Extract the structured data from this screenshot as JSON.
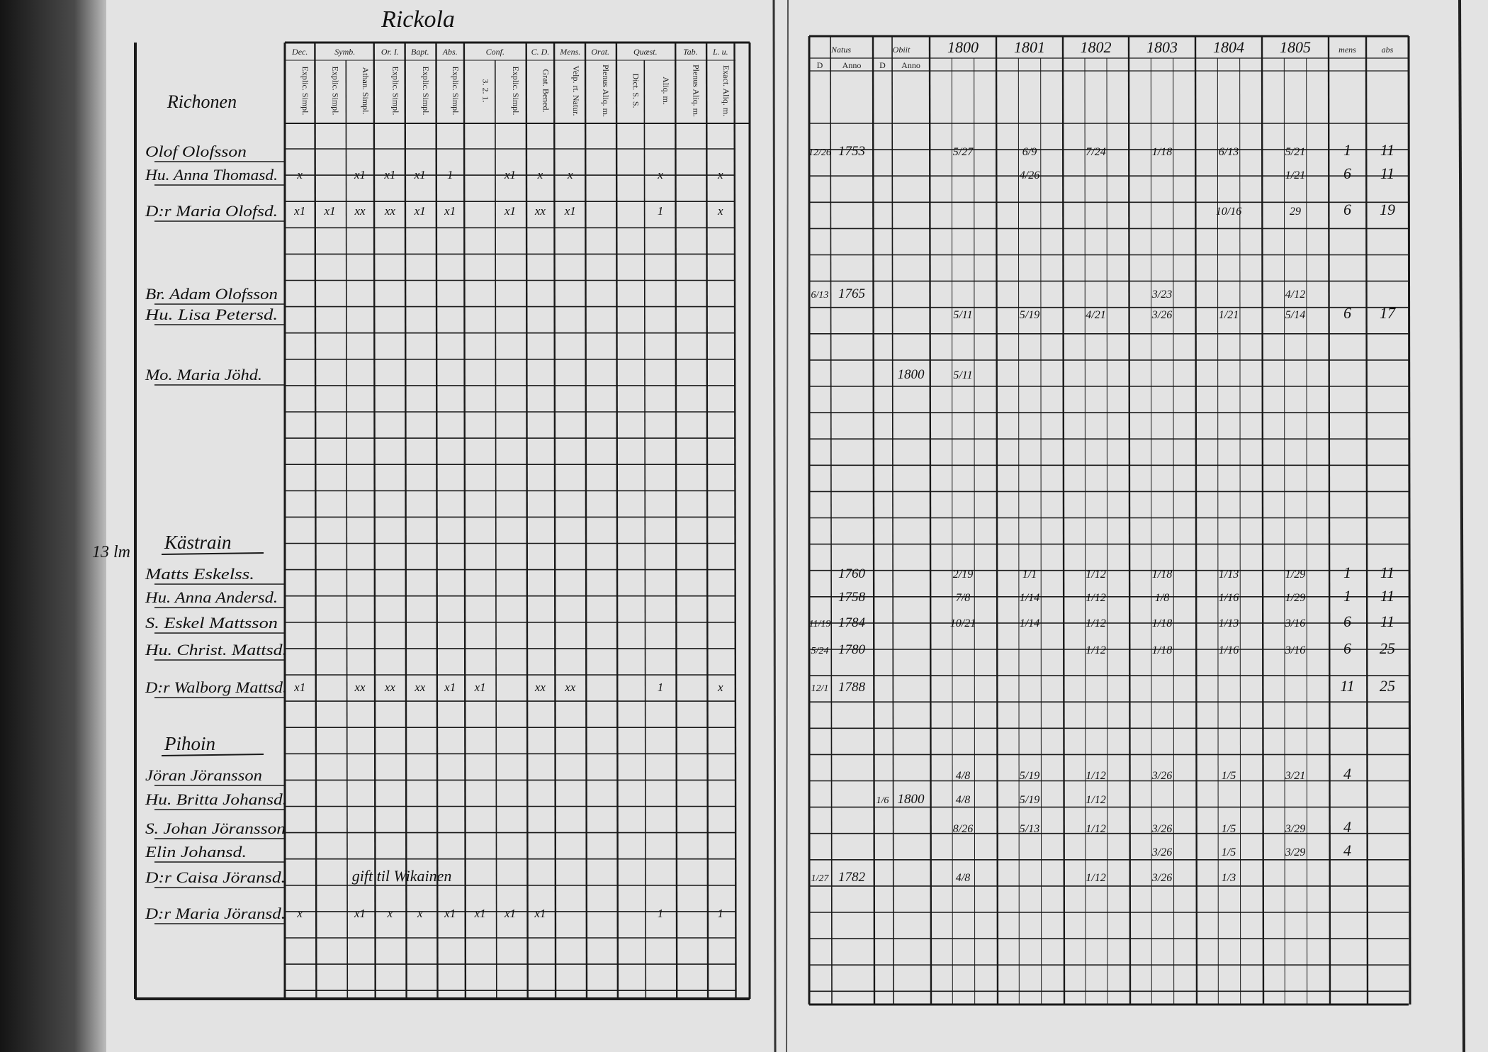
{
  "left_page": {
    "title": "Rickola",
    "name_header": "Richonen",
    "column_groups": [
      "Dec.",
      "Symb.",
      "Or. I.",
      "Bapt.",
      "Abs.",
      "Conf.",
      "C. D.",
      "Mens.",
      "Orat.",
      "Quæst.",
      "Tab.",
      "L. u."
    ],
    "column_subheaders": [
      "Explic. Simpl.",
      "Explic. Simpl.",
      "Athan. Simpl.",
      "Explic. Simpl.",
      "Explic. Simpl.",
      "Explic. Simpl.",
      "3. 2. 1.",
      "Explic. Simpl.",
      "Grat. Bened.",
      "Velp. rt. Natur.",
      "Plenus Aliq. m.",
      "Dict. S. S.",
      "Aliq. m.",
      "Plenus Aliq. m.",
      "Exact. Aliq. m."
    ],
    "sections": [
      {
        "label": "Kästrain",
        "margin": "13 lm"
      },
      {
        "label": "Pihoin"
      }
    ],
    "persons": [
      {
        "name": "Olof Olofsson"
      },
      {
        "name": "Hu. Anna Thomasd.",
        "marks": [
          "x",
          null,
          "x1",
          "x1",
          "x1",
          "1",
          null,
          "x1",
          "x",
          "x",
          null,
          null,
          "x",
          null,
          "x"
        ]
      },
      {
        "name": "D:r Maria Olofsd.",
        "marks": [
          "x1",
          "x1",
          "xx",
          "xx",
          "x1",
          "x1",
          null,
          "x1",
          "xx",
          "x1",
          null,
          null,
          "1",
          null,
          "x"
        ]
      },
      {
        "name": "Br. Adam Olofsson"
      },
      {
        "name": "Hu. Lisa Petersd."
      },
      {
        "name": "Mo. Maria Jöhd."
      },
      {
        "name": "Matts Eskelss."
      },
      {
        "name": "Hu. Anna Andersd."
      },
      {
        "name": "S. Eskel Mattsson"
      },
      {
        "name": "Hu. Christ. Mattsd."
      },
      {
        "name": "D:r Walborg Mattsd.",
        "marks": [
          "x1",
          null,
          "xx",
          "xx",
          "xx",
          "x1",
          "x1",
          null,
          "xx",
          "xx",
          null,
          null,
          "1",
          null,
          "x"
        ]
      },
      {
        "name": "Jöran Jöransson"
      },
      {
        "name": "Hu. Britta Johansd."
      },
      {
        "name": "S. Johan Jöransson"
      },
      {
        "name": "Elin Johansd."
      },
      {
        "name": "D:r Caisa Jöransd.",
        "note": "gift til Wikainen"
      },
      {
        "name": "D:r Maria Jöransd.",
        "marks": [
          "x",
          null,
          "x1",
          "x",
          "x",
          "x1",
          "x1",
          "x1",
          "x1",
          null,
          null,
          null,
          "1",
          null,
          "1"
        ]
      }
    ]
  },
  "right_page": {
    "headers": [
      "Natus",
      "Obiit",
      "1800",
      "1801",
      "1802",
      "1803",
      "1804",
      "1805",
      "mens",
      "abs"
    ],
    "subheaders": [
      "D",
      "Anno",
      "D",
      "Anno"
    ],
    "rows": [
      {
        "day": "12/26",
        "anno": "1753",
        "years": [
          "5/27",
          "6/9",
          "7/24",
          "1/18",
          "6/13",
          "5/21",
          "1",
          "11"
        ]
      },
      {
        "years": [
          null,
          "4/26",
          null,
          null,
          null,
          "1/21",
          "6",
          "11"
        ]
      },
      {
        "years": [
          null,
          null,
          null,
          null,
          "10/16",
          "29",
          "6",
          "19"
        ]
      },
      {
        "day": "6/13",
        "anno": "1765",
        "years": [
          null,
          null,
          null,
          "3/23",
          null,
          "4/12",
          null,
          null
        ]
      },
      {
        "years": [
          "5/11",
          "5/19",
          "4/21",
          "3/26",
          "1/21",
          "5/14",
          "6",
          "17"
        ]
      },
      {
        "obiit_anno": "1800",
        "years": [
          "5/11",
          null,
          null,
          null,
          null,
          null,
          null,
          null
        ]
      },
      {
        "anno": "1760",
        "years": [
          "2/19",
          "1/1",
          "1/12",
          "1/18",
          "1/13",
          "1/29",
          "1",
          "11"
        ]
      },
      {
        "anno": "1758",
        "years": [
          "7/8",
          "1/14",
          "1/12",
          "1/8",
          "1/16",
          "1/29",
          "1",
          "11"
        ]
      },
      {
        "day": "11/19",
        "anno": "1784",
        "years": [
          "10/21",
          "1/14",
          "1/12",
          "1/18",
          "1/13",
          "3/16",
          "6",
          "11"
        ]
      },
      {
        "day": "5/24",
        "anno": "1780",
        "years": [
          null,
          null,
          "1/12",
          "1/18",
          "1/16",
          "3/16",
          "6",
          "25"
        ]
      },
      {
        "day": "12/1",
        "anno": "1788",
        "years": [
          null,
          null,
          null,
          null,
          null,
          null,
          "11",
          "25"
        ]
      },
      {
        "years": [
          "4/8",
          "5/19",
          "1/12",
          "3/26",
          "1/5",
          "3/21",
          "4",
          null
        ]
      },
      {
        "obiit_day": "1/6",
        "obiit_anno": "1800",
        "years": [
          "4/8",
          "5/19",
          "1/12",
          null,
          null,
          null,
          null,
          null
        ]
      },
      {
        "years": [
          "8/26",
          "5/13",
          "1/12",
          "3/26",
          "1/5",
          "3/29",
          "4",
          null
        ]
      },
      {
        "years": [
          null,
          null,
          null,
          "3/26",
          "1/5",
          "3/29",
          "4",
          null
        ]
      },
      {
        "day": "1/27",
        "anno": "1782",
        "years": [
          "4/8",
          null,
          "1/12",
          "3/26",
          "1/3",
          null,
          null,
          null
        ]
      },
      {
        "years": [
          null,
          null,
          null,
          null,
          null,
          null,
          null,
          null
        ]
      }
    ]
  }
}
